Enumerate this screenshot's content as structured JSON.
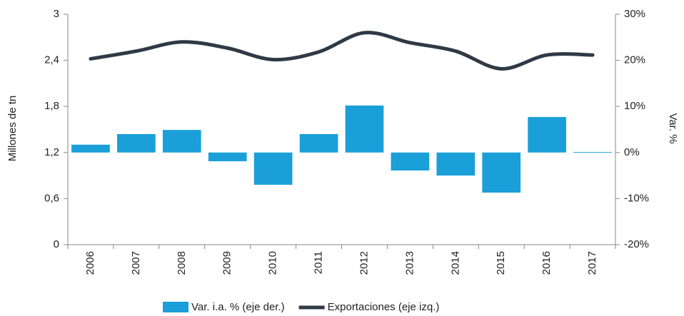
{
  "chart_data": {
    "type": "bar_line",
    "y_label": "Millones de tn",
    "y2_label": "Var. %",
    "categories": [
      "2006",
      "2007",
      "2008",
      "2009",
      "2010",
      "2011",
      "2012",
      "2013",
      "2014",
      "2015",
      "2016",
      "2017"
    ],
    "series": [
      {
        "name": "Var. i.a. % (eje der.)",
        "type": "bar",
        "axis": "y2",
        "color": "#1a9fd9",
        "values": [
          1.7,
          4.0,
          4.9,
          -1.9,
          -7.0,
          4.0,
          10.2,
          -3.9,
          -5.0,
          -8.7,
          7.7,
          0.1
        ]
      },
      {
        "name": "Exportaciones (eje izq.)",
        "type": "line",
        "axis": "y",
        "color": "#2f3a45",
        "values": [
          2.42,
          2.52,
          2.64,
          2.56,
          2.41,
          2.51,
          2.76,
          2.63,
          2.52,
          2.29,
          2.47,
          2.47
        ]
      }
    ],
    "ylim": [
      0,
      3
    ],
    "yticks": [
      0,
      {
        "value": 0.6,
        "label": "0,6"
      },
      {
        "value": 1.2,
        "label": "1,2"
      },
      {
        "value": 1.8,
        "label": "1,8"
      },
      {
        "value": 2.4,
        "label": "2,4"
      },
      3
    ],
    "y2lim": [
      -20,
      30
    ],
    "y2ticks": [
      {
        "value": -20,
        "label": "-20%"
      },
      {
        "value": -10,
        "label": "-10%"
      },
      {
        "value": 0,
        "label": "0%"
      },
      {
        "value": 10,
        "label": "10%"
      },
      {
        "value": 20,
        "label": "20%"
      },
      {
        "value": 30,
        "label": "30%"
      }
    ],
    "grid": false,
    "legend": "bottom"
  }
}
